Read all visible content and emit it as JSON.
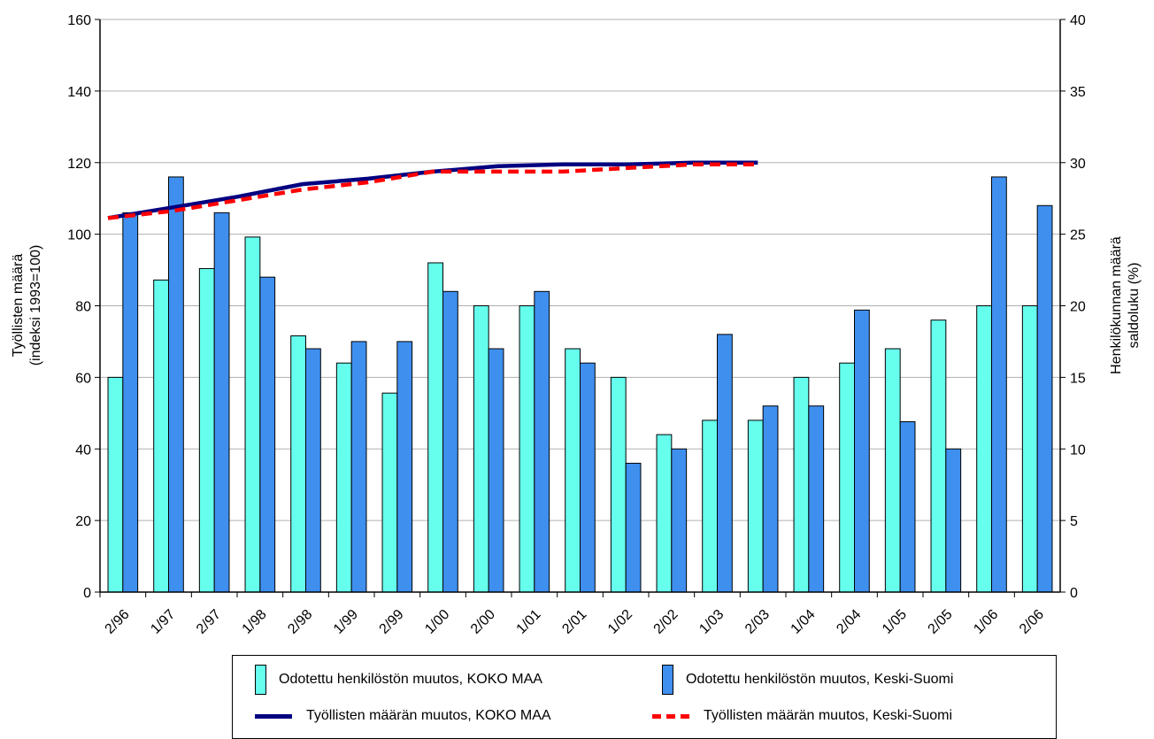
{
  "chart_data": {
    "type": "bar",
    "categories": [
      "2/96",
      "1/97",
      "2/97",
      "1/98",
      "2/98",
      "1/99",
      "2/99",
      "1/00",
      "2/00",
      "1/01",
      "2/01",
      "1/02",
      "2/02",
      "1/03",
      "2/03",
      "1/04",
      "2/04",
      "1/05",
      "2/05",
      "1/06",
      "2/06"
    ],
    "ylabel_left": [
      "Työllisten määrä",
      "(indeksi 1993=100)"
    ],
    "ylabel_right": [
      "Henkilökunnan määrä",
      "saldoluku (%)"
    ],
    "ylim_left": [
      0,
      160
    ],
    "ylim_right": [
      0,
      40
    ],
    "yticks_left": [
      "0",
      "20",
      "40",
      "60",
      "80",
      "100",
      "120",
      "140",
      "160"
    ],
    "yticks_right": [
      "0",
      "5",
      "10",
      "15",
      "20",
      "25",
      "30",
      "35",
      "40"
    ],
    "grid": true,
    "legend_position": "bottom",
    "bar_series": [
      {
        "name": "Odotettu henkilöstön muutos, KOKO MAA",
        "color": "#66ffee",
        "axis": "right",
        "values": [
          15.0,
          21.8,
          22.6,
          24.8,
          17.9,
          16.0,
          13.9,
          23.0,
          20.0,
          20.0,
          17.0,
          15.0,
          11.0,
          12.0,
          12.0,
          15.0,
          16.0,
          17.0,
          19.0,
          20.0,
          20.0
        ]
      },
      {
        "name": "Odotettu henkilöstön muutos, Keski-Suomi",
        "color": "#3f8fef",
        "axis": "right",
        "values": [
          26.5,
          29.0,
          26.5,
          22.0,
          17.0,
          17.5,
          17.5,
          21.0,
          17.0,
          21.0,
          16.0,
          9.0,
          10.0,
          18.0,
          13.0,
          13.0,
          19.7,
          11.9,
          10.0,
          29.0,
          27.0
        ]
      }
    ],
    "line_series": [
      {
        "name": "Työllisten määrän muutos, KOKO MAA",
        "color": "#000080",
        "style": "solid",
        "axis": "left",
        "values": [
          104.5,
          107.5,
          110.5,
          114,
          115.5,
          117.5,
          119,
          119.5,
          119.5,
          120,
          120
        ]
      },
      {
        "name": "Työllisten määrän muutos, Keski-Suomi",
        "color": "#ff0000",
        "style": "dashed",
        "axis": "left",
        "values": [
          104.5,
          106.5,
          109.5,
          112.5,
          114.5,
          117.5,
          117.5,
          117.5,
          118.5,
          119.5,
          119.5
        ]
      }
    ]
  }
}
